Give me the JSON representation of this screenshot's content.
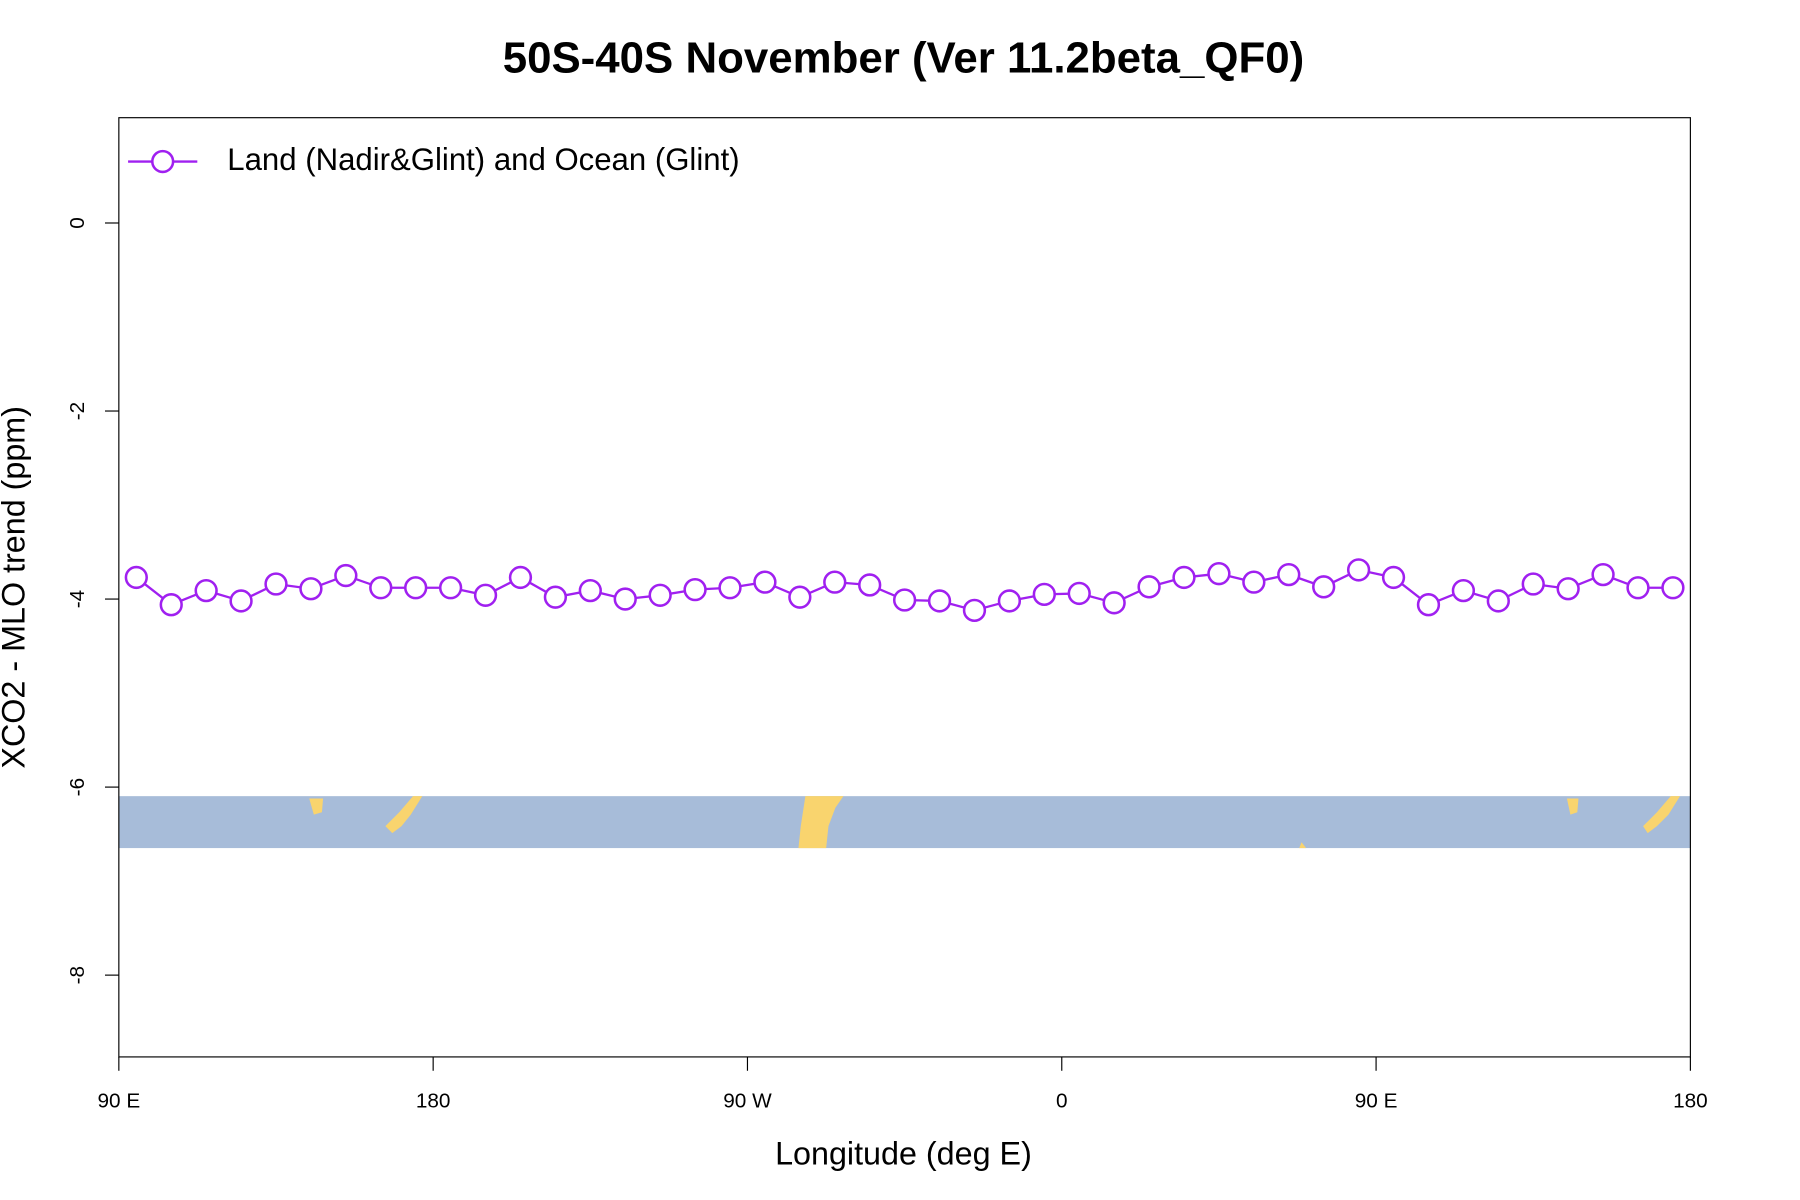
{
  "chart_data": {
    "type": "line",
    "title": "50S-40S November (Ver 11.2beta_QF0)",
    "x_label": "Longitude (deg E)",
    "y_label": "XCO2 - MLO trend (ppm)",
    "x": [
      95,
      105,
      115,
      125,
      135,
      145,
      155,
      165,
      175,
      185,
      195,
      205,
      215,
      225,
      235,
      245,
      255,
      265,
      275,
      285,
      295,
      305,
      315,
      325,
      335,
      345,
      355,
      365,
      375,
      385,
      395,
      405,
      415,
      425,
      435,
      445,
      455,
      465,
      475,
      485,
      495,
      505,
      515,
      525,
      535
    ],
    "series": [
      {
        "name": "Land (Nadir&Glint) and Ocean (Glint)",
        "color": "#a020f0",
        "values": [
          -3.77,
          -4.06,
          -3.91,
          -4.02,
          -3.84,
          -3.89,
          -3.75,
          -3.88,
          -3.88,
          -3.88,
          -3.96,
          -3.77,
          -3.98,
          -3.91,
          -4.0,
          -3.96,
          -3.9,
          -3.88,
          -3.82,
          -3.98,
          -3.82,
          -3.85,
          -4.01,
          -4.02,
          -4.12,
          -4.02,
          -3.95,
          -3.94,
          -4.04,
          -3.87,
          -3.77,
          -3.73,
          -3.82,
          -3.74,
          -3.87,
          -3.69,
          -3.77,
          -4.06,
          -3.91,
          -4.02,
          -3.84,
          -3.89,
          -3.74,
          -3.88,
          -3.88
        ]
      }
    ],
    "xlim": [
      90,
      540
    ],
    "xticks": [
      {
        "value": 90,
        "label": "90 E"
      },
      180,
      {
        "value": 270,
        "label": "90 W"
      },
      {
        "value": 360,
        "label": "0"
      },
      {
        "value": 450,
        "label": "90 E"
      },
      {
        "value": 540,
        "label": "180"
      }
    ],
    "ylim": [
      -8.87,
      1.12
    ],
    "yticks": [
      0,
      -2,
      -4,
      -6,
      -8
    ],
    "legend": "topleft",
    "grid": false
  }
}
